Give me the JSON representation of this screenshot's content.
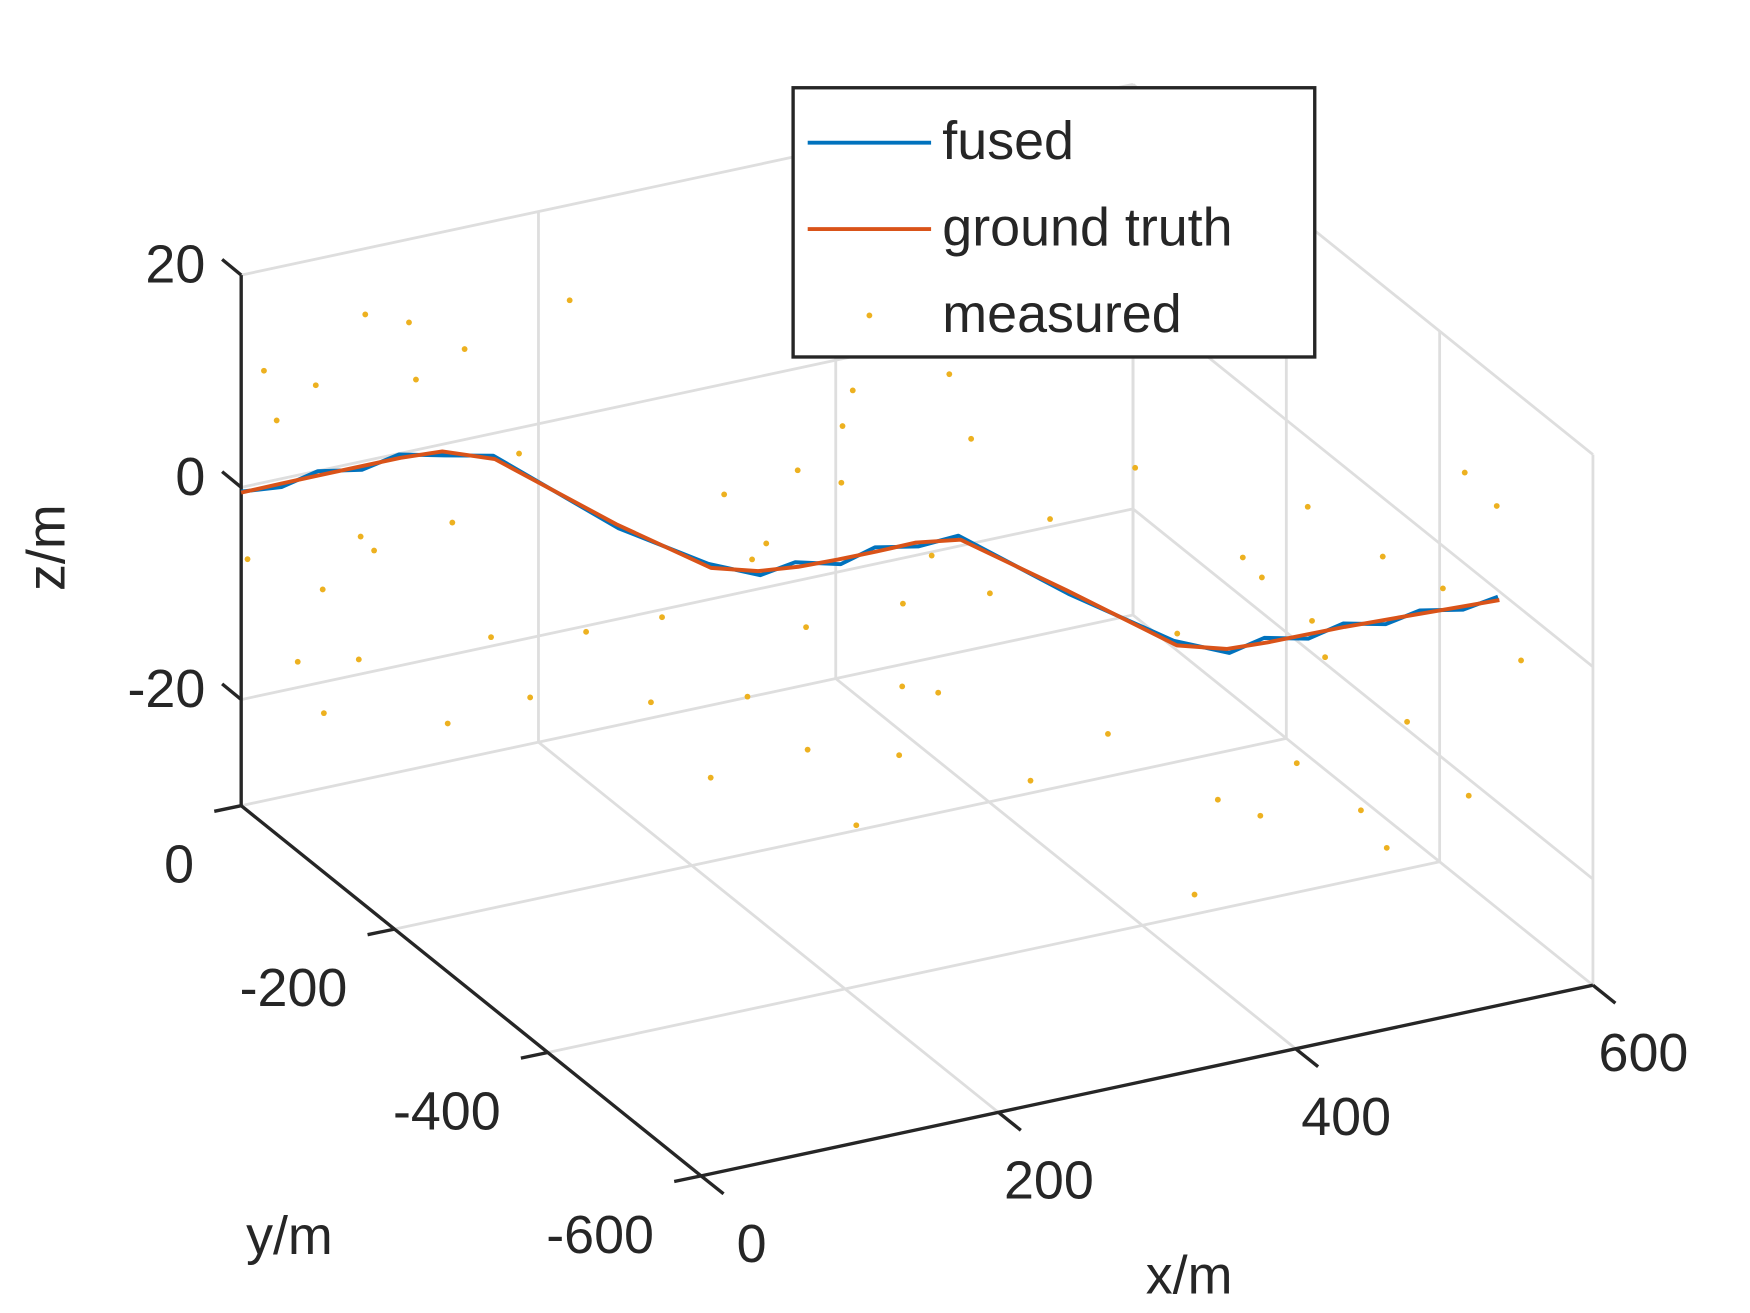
{
  "chart_data": {
    "type": "line3d",
    "xlabel": "x/m",
    "ylabel": "y/m",
    "zlabel": "z/m",
    "xlim": [
      0,
      600
    ],
    "ylim": [
      -600,
      0
    ],
    "zlim": [
      -30,
      20
    ],
    "xticks": [
      0,
      200,
      400,
      600
    ],
    "yticks": [
      -600,
      -400,
      -200,
      0
    ],
    "zticks": [
      -20,
      0,
      20
    ],
    "grid": true,
    "legend": "north",
    "series": [
      {
        "name": "fused",
        "color": "#0072bd",
        "mode": "line",
        "x": [
          0,
          25,
          50,
          75,
          100,
          125,
          150,
          175,
          200,
          225,
          250,
          275,
          300,
          325,
          350,
          375,
          400,
          425,
          450,
          475,
          500,
          525,
          550,
          575,
          600
        ],
        "y": [
          0,
          -4,
          -3,
          -12,
          -12,
          -23,
          -38,
          -153,
          -222,
          -241,
          -238,
          -249,
          -245,
          -253,
          -257,
          -352,
          -441,
          -465,
          -462,
          -471,
          -468,
          -475,
          -471,
          -479,
          -476
        ],
        "z": [
          -0.4,
          -0.5,
          0.2,
          0.1,
          0.8,
          0.6,
          0.7,
          -0.2,
          -0.3,
          -1,
          -0.7,
          -1,
          -0.4,
          -0.6,
          -0.1,
          -0.8,
          -0.8,
          -1.3,
          -0.8,
          -1.1,
          -0.6,
          -1,
          -0.7,
          -0.9,
          -0.6
        ]
      },
      {
        "name": "ground truth",
        "color": "#d95319",
        "mode": "line",
        "x": [
          0,
          25,
          50,
          75,
          100,
          125,
          150,
          175,
          200,
          225,
          250,
          275,
          300,
          325,
          350,
          375,
          400,
          425,
          450,
          475,
          500,
          525,
          550,
          575,
          600
        ],
        "y": [
          0,
          -2,
          -6,
          -10,
          -14,
          -20,
          -40,
          -150,
          -225,
          -238,
          -242,
          -245,
          -248,
          -250,
          -260,
          -350,
          -445,
          -462,
          -466,
          -468,
          -470,
          -472,
          -474,
          -476,
          -478
        ],
        "z": [
          -0.5,
          -0.3,
          0,
          0.3,
          0.6,
          0.8,
          0.5,
          0,
          -0.5,
          -0.8,
          -0.9,
          -0.8,
          -0.6,
          -0.4,
          -0.3,
          -0.6,
          -1,
          -1.1,
          -1,
          -0.9,
          -0.8,
          -0.8,
          -0.8,
          -0.8,
          -0.8
        ]
      },
      {
        "name": "measured",
        "color": "#edb120",
        "mode": "markers",
        "x": [
          5,
          12,
          20,
          28,
          35,
          44,
          52,
          60,
          68,
          75,
          84,
          92,
          100,
          108,
          115,
          124,
          132,
          140,
          148,
          156,
          165,
          172,
          180,
          188,
          196,
          205,
          214,
          222,
          230,
          238,
          247,
          255,
          264,
          272,
          280,
          290,
          298,
          306,
          315,
          324,
          332,
          340,
          349,
          357,
          366,
          374,
          382,
          390,
          399,
          408,
          416,
          425,
          434,
          442,
          451,
          460,
          470,
          480,
          492,
          505,
          518,
          530,
          542,
          555,
          568,
          580,
          592
        ],
        "y": [
          -20,
          15,
          -35,
          8,
          -40,
          -12,
          -55,
          10,
          -30,
          -8,
          -45,
          5,
          -25,
          -60,
          -5,
          -35,
          -70,
          -20,
          -90,
          -60,
          -130,
          -95,
          -200,
          -170,
          -250,
          -215,
          -270,
          -230,
          -280,
          -205,
          -260,
          -290,
          -225,
          -275,
          -240,
          -300,
          -220,
          -265,
          -290,
          -235,
          -280,
          -250,
          -300,
          -260,
          -320,
          -330,
          -390,
          -410,
          -470,
          -430,
          -500,
          -450,
          -490,
          -520,
          -455,
          -505,
          -480,
          -530,
          -460,
          -510,
          -490,
          -540,
          -470,
          -520,
          -500,
          -545,
          -490
        ],
        "z": [
          12,
          -8,
          -15,
          5,
          -20,
          9,
          -3,
          -12,
          16,
          -18,
          3,
          -9,
          14,
          -22,
          7,
          -5,
          -14,
          10,
          -19,
          2,
          -11,
          18,
          -6,
          -16,
          8,
          -21,
          4,
          -13,
          11,
          -2,
          -17,
          15,
          -8,
          -24,
          6,
          -10,
          13,
          -19,
          1,
          -7,
          17,
          -15,
          -3,
          9,
          -20,
          5,
          -12,
          14,
          -23,
          -1,
          10,
          -16,
          7,
          -9,
          -18,
          3,
          12,
          -14,
          -4,
          8,
          -21,
          6,
          -11,
          15,
          -17,
          -2,
          9
        ]
      }
    ]
  }
}
